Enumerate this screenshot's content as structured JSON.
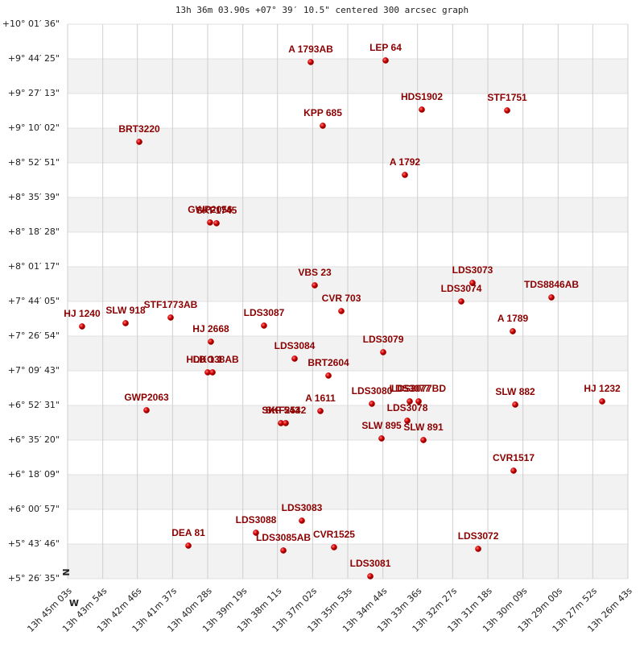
{
  "chart_data": {
    "type": "scatter",
    "title": "13h 36m 03.90s +07° 39′ 10.5\" centered 300 arcsec graph",
    "compass": [
      "N",
      "W"
    ],
    "xlim": [
      49503,
      48403
    ],
    "ylim": [
      5.44306,
      10.02667
    ],
    "grid": true,
    "xticks": [
      {
        "value": 49503,
        "label": "13h 45m 03s"
      },
      {
        "value": 49434,
        "label": "13h 43m 54s"
      },
      {
        "value": 49366,
        "label": "13h 42m 46s"
      },
      {
        "value": 49297,
        "label": "13h 41m 37s"
      },
      {
        "value": 49228,
        "label": "13h 40m 28s"
      },
      {
        "value": 49159,
        "label": "13h 39m 19s"
      },
      {
        "value": 49091,
        "label": "13h 38m 11s"
      },
      {
        "value": 49022,
        "label": "13h 37m 02s"
      },
      {
        "value": 48953,
        "label": "13h 35m 53s"
      },
      {
        "value": 48884,
        "label": "13h 34m 44s"
      },
      {
        "value": 48816,
        "label": "13h 33m 36s"
      },
      {
        "value": 48747,
        "label": "13h 32m 27s"
      },
      {
        "value": 48678,
        "label": "13h 31m 18s"
      },
      {
        "value": 48609,
        "label": "13h 30m 09s"
      },
      {
        "value": 48540,
        "label": "13h 29m 00s"
      },
      {
        "value": 48472,
        "label": "13h 27m 52s"
      },
      {
        "value": 48403,
        "label": "13h 26m 43s"
      }
    ],
    "yticks": [
      {
        "value": 5.44306,
        "label": "+5° 26′ 35\""
      },
      {
        "value": 5.72944,
        "label": "+5° 43′ 46\""
      },
      {
        "value": 6.01583,
        "label": "+6° 00′ 57\""
      },
      {
        "value": 6.3025,
        "label": "+6° 18′ 09\""
      },
      {
        "value": 6.58889,
        "label": "+6° 35′ 20\""
      },
      {
        "value": 6.87528,
        "label": "+6° 52′ 31\""
      },
      {
        "value": 7.16194,
        "label": "+7° 09′ 43\""
      },
      {
        "value": 7.44833,
        "label": "+7° 26′ 54\""
      },
      {
        "value": 7.73472,
        "label": "+7° 44′ 05\""
      },
      {
        "value": 8.02139,
        "label": "+8° 01′ 17\""
      },
      {
        "value": 8.30778,
        "label": "+8° 18′ 28\""
      },
      {
        "value": 8.59417,
        "label": "+8° 35′ 39\""
      },
      {
        "value": 8.88083,
        "label": "+8° 52′ 51\""
      },
      {
        "value": 9.16722,
        "label": "+9° 10′ 02\""
      },
      {
        "value": 9.45361,
        "label": "+9° 27′ 13\""
      },
      {
        "value": 9.74028,
        "label": "+9° 44′ 25\""
      },
      {
        "value": 10.02667,
        "label": "+10° 01′ 36\""
      }
    ],
    "series": [
      {
        "color": "#cc0000",
        "labels": [
          "A  1793AB",
          "LEP  64",
          "HDS1902",
          "STF1751",
          "KPP 685",
          "BRT3220",
          "A  1792",
          "GWP2056",
          "SKF1745",
          "LDS3073",
          "VBS  23",
          "TDS8846AB",
          "LDS3074",
          "CVR 703",
          "STF1773AB",
          "SLW 918",
          "HJ 1240",
          "LDS3087",
          "A  1789",
          "HJ 2668",
          "LDS3079",
          "LDS3084",
          "DKO 1",
          "HLD 138AB",
          "BRT2604",
          "A  1611",
          "LDS3080",
          "LDS3077",
          "LDS3077BD",
          "LDS3078",
          "SLW 882",
          "HJ 1232",
          "GWP2063",
          "SKF 543",
          "SKF2542",
          "SLW 895",
          "SLW 891",
          "CVR1517",
          "LDS3083",
          "LDS3088",
          "DEA  81",
          "LDS3085AB",
          "CVR1525",
          "LDS3072",
          "LDS3081"
        ],
        "x": [
          49025.7,
          48878.7,
          48807.6,
          48640.0,
          49002.0,
          49362.3,
          48840.8,
          49223.3,
          49210.6,
          48708.0,
          49017.8,
          48553.1,
          48730.1,
          48965.6,
          49300.7,
          49389.2,
          49474.6,
          49117.4,
          48629.0,
          49221.7,
          48883.4,
          49057.3,
          49228.0,
          49218.5,
          48990.9,
          49006.7,
          48905.6,
          48831.3,
          48813.9,
          48836.0,
          48624.2,
          48453.5,
          49348.1,
          49084.2,
          49074.7,
          48886.6,
          48804.4,
          48627.4,
          49043.1,
          49133.2,
          49265.9,
          49079.4,
          48979.9,
          48696.9,
          48908.7
        ],
        "values": [
          9.7136,
          9.7269,
          9.3205,
          9.3138,
          9.1872,
          9.054,
          8.7808,
          8.3877,
          8.3811,
          7.8881,
          7.8681,
          7.7682,
          7.7349,
          7.6549,
          7.6016,
          7.555,
          7.5283,
          7.535,
          7.4884,
          7.4018,
          7.3151,
          7.2618,
          7.1486,
          7.1486,
          7.1219,
          6.8288,
          6.8888,
          6.9087,
          6.9087,
          6.7488,
          6.8821,
          6.9087,
          6.8355,
          6.7289,
          6.7289,
          6.6023,
          6.589,
          6.3358,
          5.9227,
          5.8228,
          5.7162,
          5.6762,
          5.7029,
          5.6895,
          5.463
        ]
      }
    ]
  }
}
